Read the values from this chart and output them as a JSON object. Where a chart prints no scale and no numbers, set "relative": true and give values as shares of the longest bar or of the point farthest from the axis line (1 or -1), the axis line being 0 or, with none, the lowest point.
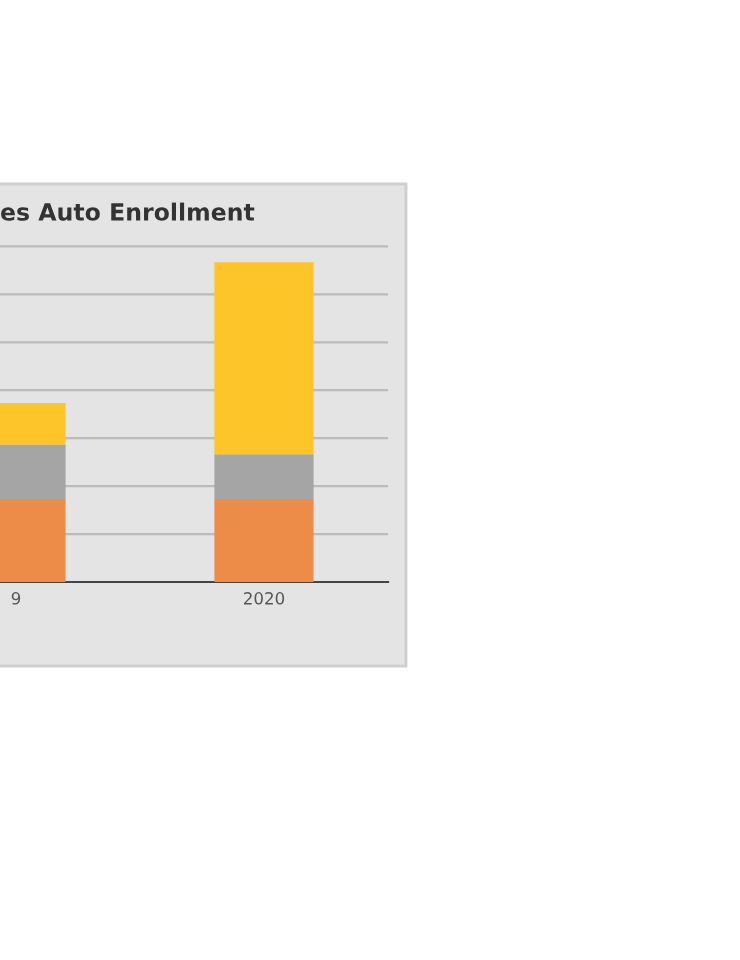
{
  "chart_data": {
    "type": "bar",
    "title": "es Auto Enrollment",
    "categories": [
      "9",
      "2020"
    ],
    "stacked": true,
    "relative": true,
    "grid": "y",
    "series": [
      {
        "color": "#ed8b48",
        "values": [
          0.26,
          0.26
        ]
      },
      {
        "color": "#a5a5a5",
        "values": [
          0.17,
          0.14
        ]
      },
      {
        "color": "#fdc527",
        "values": [
          0.13,
          0.6
        ]
      }
    ]
  }
}
